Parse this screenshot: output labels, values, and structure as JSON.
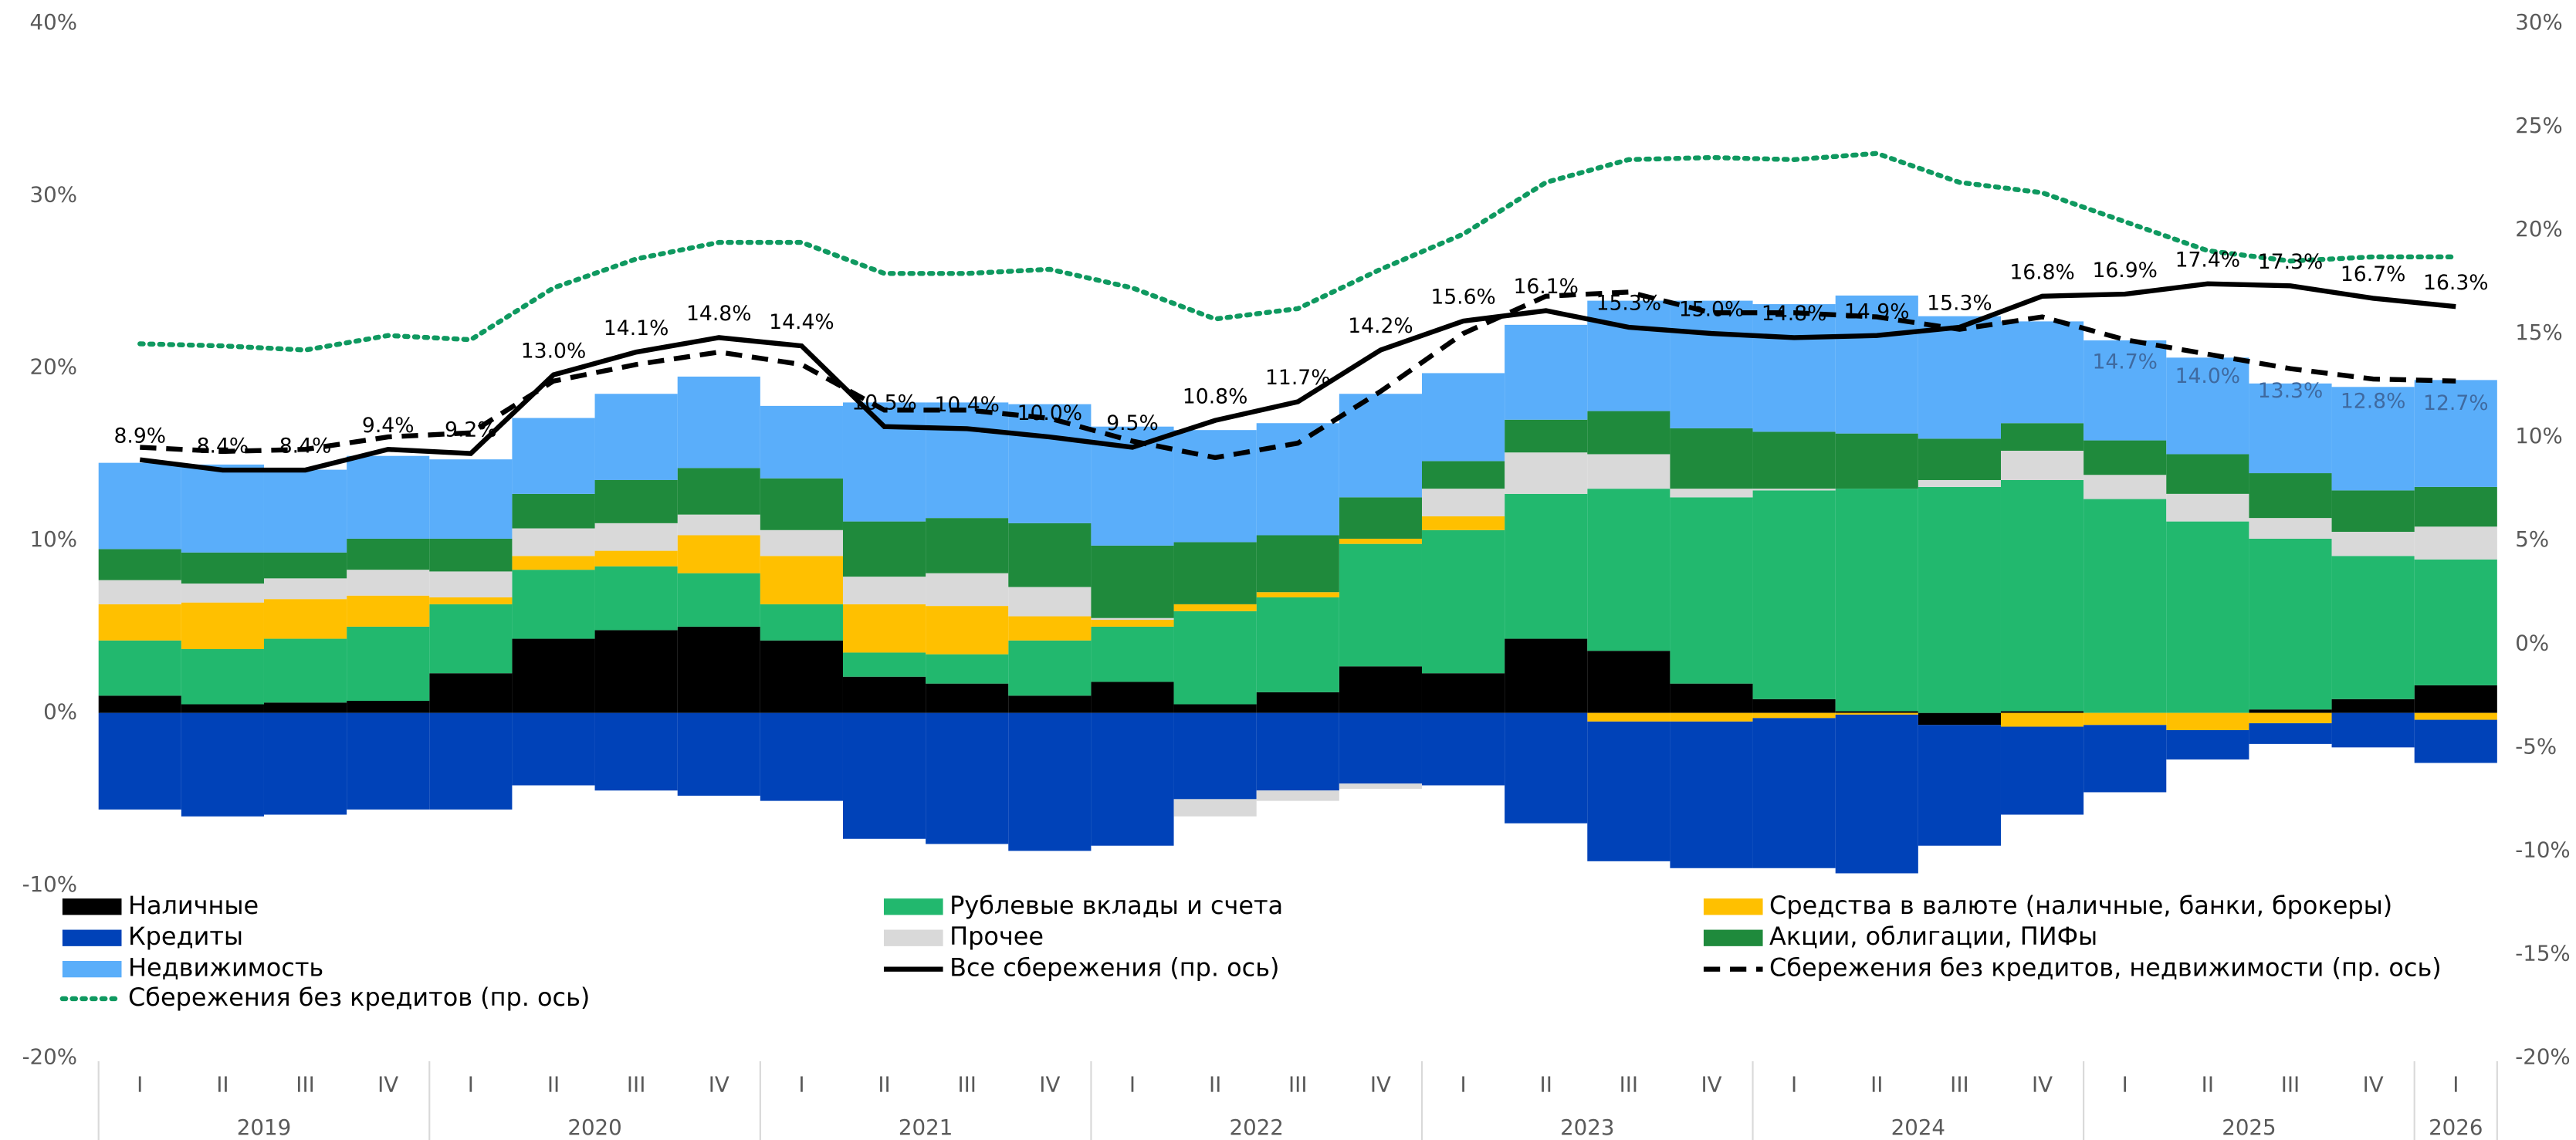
{
  "chart_data": {
    "type": "bar",
    "stacked": true,
    "categories": [
      "I",
      "II",
      "III",
      "IV",
      "I",
      "II",
      "III",
      "IV",
      "I",
      "II",
      "III",
      "IV",
      "I",
      "II",
      "III",
      "IV",
      "I",
      "II",
      "III",
      "IV",
      "I",
      "II",
      "III",
      "IV",
      "I",
      "II",
      "III",
      "IV",
      "I"
    ],
    "x_groups": [
      "2019",
      "2020",
      "2021",
      "2022",
      "2023",
      "2024",
      "2025",
      "2026"
    ],
    "ylim": [
      -20,
      40
    ],
    "yticks": [
      {
        "value": -20,
        "label": "-20%"
      },
      {
        "value": -10,
        "label": "-10%"
      },
      {
        "value": 0,
        "label": "0%"
      },
      {
        "value": 10,
        "label": "10%"
      },
      {
        "value": 20,
        "label": "20%"
      },
      {
        "value": 30,
        "label": "30%"
      },
      {
        "value": 40,
        "label": "40%"
      }
    ],
    "y2lim": [
      -20,
      30
    ],
    "y2ticks": [
      {
        "value": -20,
        "label": "-20%"
      },
      {
        "value": -15,
        "label": "-15%"
      },
      {
        "value": -10,
        "label": "-10%"
      },
      {
        "value": -5,
        "label": "-5%"
      },
      {
        "value": 0,
        "label": "0%"
      },
      {
        "value": 5,
        "label": "5%"
      },
      {
        "value": 10,
        "label": "10%"
      },
      {
        "value": 15,
        "label": "15%"
      },
      {
        "value": 20,
        "label": "20%"
      },
      {
        "value": 25,
        "label": "25%"
      },
      {
        "value": 30,
        "label": "30%"
      }
    ],
    "series": [
      {
        "name": "Наличные",
        "color": "#000000",
        "values": [
          1.0,
          0.5,
          0.6,
          0.7,
          2.3,
          4.3,
          4.8,
          5.0,
          4.2,
          2.1,
          1.7,
          1.0,
          1.8,
          0.5,
          1.2,
          2.7,
          2.3,
          4.3,
          3.6,
          1.7,
          0.8,
          0.1,
          -0.7,
          0.1,
          0,
          0,
          0.2,
          0.8,
          1.6
        ]
      },
      {
        "name": "Рублевые вклады и счета",
        "color": "#22b86e",
        "values": [
          3.2,
          3.2,
          3.7,
          4.3,
          4.0,
          4.0,
          3.7,
          3.1,
          2.1,
          1.4,
          1.7,
          3.2,
          3.2,
          5.4,
          5.5,
          7.1,
          8.3,
          8.4,
          9.4,
          10.8,
          12.1,
          12.9,
          13.1,
          13.4,
          12.4,
          11.1,
          9.9,
          8.3,
          7.3
        ]
      },
      {
        "name": "Средства в валюте (наличные, банки, брокеры)",
        "color": "#ffc000",
        "values": [
          2.1,
          2.7,
          2.3,
          1.8,
          0.4,
          0.8,
          0.9,
          2.2,
          2.8,
          2.8,
          2.8,
          1.4,
          0.4,
          0.4,
          0.3,
          0.3,
          0.8,
          0,
          -0.5,
          -0.5,
          -0.3,
          -0.1,
          0,
          -0.8,
          -0.7,
          -1.0,
          -0.6,
          0,
          -0.4
        ]
      },
      {
        "name": "Кредиты",
        "color": "#0042b8",
        "values": [
          -5.6,
          -6.0,
          -5.9,
          -5.6,
          -5.6,
          -4.2,
          -4.5,
          -4.8,
          -5.1,
          -7.3,
          -7.6,
          -8.0,
          -7.7,
          -5.0,
          -4.5,
          -4.1,
          -4.2,
          -6.4,
          -8.1,
          -8.5,
          -8.7,
          -9.2,
          -7.0,
          -5.1,
          -3.9,
          -1.7,
          -1.2,
          -2.0,
          -2.5
        ]
      },
      {
        "name": "Прочее",
        "color": "#d9d9d9",
        "values": [
          1.4,
          1.1,
          1.2,
          1.5,
          1.5,
          1.6,
          1.6,
          1.2,
          1.5,
          1.6,
          1.9,
          1.7,
          0.1,
          -1.0,
          -0.6,
          -0.3,
          1.6,
          2.4,
          2.0,
          0.5,
          0.1,
          0,
          0.4,
          1.7,
          1.4,
          1.6,
          1.2,
          1.4,
          1.9
        ]
      },
      {
        "name": "Акции, облигации, ПИФы",
        "color": "#1f8a3c",
        "values": [
          1.8,
          1.8,
          1.5,
          1.8,
          1.9,
          2.0,
          2.5,
          2.7,
          3.0,
          3.2,
          3.2,
          3.7,
          4.2,
          3.6,
          3.3,
          2.4,
          1.6,
          1.9,
          2.5,
          3.5,
          3.3,
          3.2,
          2.4,
          1.6,
          2.0,
          2.3,
          2.6,
          2.4,
          2.3
        ]
      },
      {
        "name": "Недвижимость",
        "color": "#5aaefa",
        "values": [
          5.0,
          5.1,
          4.8,
          4.8,
          4.6,
          4.4,
          5.0,
          5.3,
          4.2,
          6.9,
          6.7,
          6.9,
          6.9,
          6.5,
          6.5,
          6.0,
          5.1,
          5.5,
          6.4,
          7.4,
          7.4,
          8.0,
          7.1,
          5.9,
          5.8,
          5.6,
          5.2,
          6.0,
          6.2
        ]
      },
      {
        "name": "Все сбережения (пр. ось)",
        "type": "line",
        "axis": "y2",
        "style": "solid",
        "color": "#000000",
        "values": [
          8.9,
          8.4,
          8.4,
          9.4,
          9.2,
          13.0,
          14.1,
          14.8,
          14.4,
          10.5,
          10.4,
          10.0,
          9.5,
          10.8,
          11.7,
          14.2,
          15.6,
          16.1,
          15.3,
          15.0,
          14.8,
          14.9,
          15.3,
          16.8,
          16.9,
          17.4,
          17.3,
          16.7,
          16.3
        ],
        "value_labels": [
          "8.9%",
          "8.4%",
          "8.4%",
          "9.4%",
          "9.2%",
          "13.0%",
          "14.1%",
          "14.8%",
          "14.4%",
          "10.5%",
          "10.4%",
          "10.0%",
          "9.5%",
          "10.8%",
          "11.7%",
          "14.2%",
          "15.6%",
          "16.1%",
          "15.3%",
          "15.0%",
          "14.8%",
          "14.9%",
          "15.3%",
          "16.8%",
          "16.9%",
          "17.4%",
          "17.3%",
          "16.7%",
          "16.3%"
        ]
      },
      {
        "name": "Сбережения без кредитов, недвижимости (пр. ось)",
        "type": "line",
        "axis": "y2",
        "style": "dashed",
        "color": "#000000",
        "values": [
          9.5,
          9.3,
          9.4,
          10.0,
          10.2,
          12.7,
          13.5,
          14.1,
          13.5,
          11.3,
          11.3,
          10.9,
          9.8,
          9.0,
          9.7,
          12.2,
          15.0,
          16.8,
          17.0,
          16.0,
          16.0,
          15.8,
          15.2,
          15.8,
          14.7,
          14.0,
          13.3,
          12.8,
          12.7
        ],
        "value_labels": [
          null,
          null,
          null,
          null,
          null,
          null,
          null,
          null,
          null,
          null,
          null,
          null,
          null,
          null,
          null,
          null,
          null,
          null,
          null,
          null,
          null,
          null,
          null,
          null,
          "14.7%",
          "14.0%",
          "13.3%",
          "12.8%",
          "12.7%"
        ],
        "label_color": "#3f6aa0"
      },
      {
        "name": "Сбережения без кредитов (пр. ось)",
        "type": "line",
        "axis": "y2",
        "style": "dotted",
        "color": "#0f9960",
        "values": [
          14.5,
          14.4,
          14.2,
          14.9,
          14.7,
          17.2,
          18.6,
          19.4,
          19.4,
          17.9,
          17.9,
          18.1,
          17.2,
          15.7,
          16.2,
          18.1,
          19.8,
          22.3,
          23.4,
          23.5,
          23.4,
          23.7,
          22.3,
          21.8,
          20.4,
          19.0,
          18.5,
          18.7,
          18.7
        ]
      }
    ]
  }
}
